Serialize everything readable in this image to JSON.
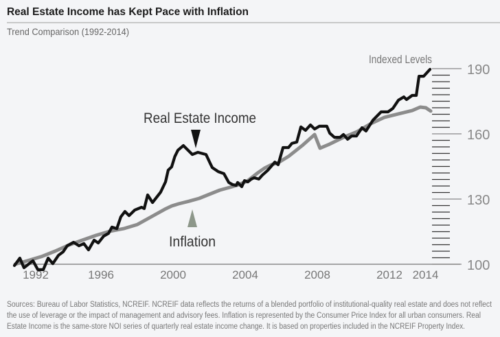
{
  "header": {
    "title": "Real Estate Income has Kept Pace with Inflation",
    "subtitle": "Trend Comparison (1992-2014)"
  },
  "footnote": [
    "Sources: Bureau of Labor Statistics, NCREIF. NCREIF data reflects the returns of a blended portfolio of institutional-quality real estate and does not reflect",
    "the use of leverage or the impact of management and advisory fees. Inflation is represented by the Consumer Price Index for all urban consumers. Real",
    "Estate Income is the same-store NOI series of quarterly real estate income change. It is based on properties included in the NCREIF Property Index."
  ],
  "colors": {
    "background": "#f4f5f7",
    "real_estate": "#111111",
    "inflation": "#8c8c8c",
    "inflation_marker": "#8d978a"
  },
  "chart_data": {
    "type": "line",
    "title": "Real Estate Income has Kept Pace with Inflation",
    "subtitle": "Trend Comparison (1992-2014)",
    "ylabel": "Indexed Levels",
    "xlim": [
      1991.2,
      2015.5
    ],
    "ylim": [
      100,
      190
    ],
    "x_ticks": [
      1992,
      1996,
      2000,
      2004,
      2008,
      2012,
      2014
    ],
    "x_tick_labels": [
      "1992",
      "1996",
      "2000",
      "2004",
      "2008",
      "2012",
      "2014"
    ],
    "y_ticks": [
      100,
      130,
      160,
      190
    ],
    "y_tick_labels": [
      "100",
      "130",
      "160",
      "190"
    ],
    "y_minor_step": 3,
    "y_axis_side": "right",
    "grid": false,
    "legend": "none (inline labels)",
    "annotations": [
      {
        "text": "Real Estate Income",
        "series": 0,
        "marker": "down-triangle"
      },
      {
        "text": "Inflation",
        "series": 1,
        "marker": "up-triangle"
      }
    ],
    "series": [
      {
        "name": "Real Estate Income",
        "points": [
          [
            1991.2,
            99.4
          ],
          [
            1991.5,
            102.8
          ],
          [
            1991.73,
            98.4
          ],
          [
            1992.23,
            101.6
          ],
          [
            1992.5,
            97.5
          ],
          [
            1992.8,
            97.5
          ],
          [
            1993.07,
            102.8
          ],
          [
            1993.33,
            100.3
          ],
          [
            1993.64,
            104.1
          ],
          [
            1993.9,
            105.7
          ],
          [
            1994.13,
            108.5
          ],
          [
            1994.48,
            110.1
          ],
          [
            1994.78,
            108.5
          ],
          [
            1995.05,
            109.5
          ],
          [
            1995.31,
            106.6
          ],
          [
            1995.62,
            111.1
          ],
          [
            1995.85,
            109.8
          ],
          [
            1996.15,
            112.9
          ],
          [
            1996.42,
            114.2
          ],
          [
            1996.61,
            117.1
          ],
          [
            1996.88,
            116.4
          ],
          [
            1997.1,
            121.8
          ],
          [
            1997.33,
            124.3
          ],
          [
            1997.56,
            122.4
          ],
          [
            1997.87,
            124.9
          ],
          [
            1998.25,
            126.2
          ],
          [
            1998.4,
            125.6
          ],
          [
            1998.59,
            131.9
          ],
          [
            1998.86,
            128.4
          ],
          [
            1999.31,
            133.2
          ],
          [
            1999.58,
            137.9
          ],
          [
            1999.73,
            143.3
          ],
          [
            1999.92,
            144.8
          ],
          [
            2000.1,
            149.6
          ],
          [
            2000.27,
            152.5
          ],
          [
            2000.57,
            154.6
          ],
          [
            2001.07,
            150.5
          ],
          [
            2001.37,
            151.5
          ],
          [
            2001.83,
            150.5
          ],
          [
            2002.06,
            146.4
          ],
          [
            2002.17,
            144.5
          ],
          [
            2002.51,
            142.6
          ],
          [
            2002.82,
            141.7
          ],
          [
            2003.09,
            137.6
          ],
          [
            2003.31,
            136.6
          ],
          [
            2003.5,
            136.3
          ],
          [
            2003.58,
            137.6
          ],
          [
            2003.81,
            135.7
          ],
          [
            2003.96,
            138.5
          ],
          [
            2004.15,
            137.9
          ],
          [
            2004.34,
            139.2
          ],
          [
            2004.5,
            139.8
          ],
          [
            2004.76,
            139.2
          ],
          [
            2004.95,
            141.0
          ],
          [
            2005.26,
            143.3
          ],
          [
            2005.64,
            147.0
          ],
          [
            2005.83,
            145.8
          ],
          [
            2006.1,
            153.7
          ],
          [
            2006.4,
            153.7
          ],
          [
            2006.59,
            155.6
          ],
          [
            2006.86,
            156.2
          ],
          [
            2007.09,
            163.2
          ],
          [
            2007.35,
            161.6
          ],
          [
            2007.62,
            164.1
          ],
          [
            2007.85,
            162.2
          ],
          [
            2008.11,
            163.5
          ],
          [
            2008.53,
            163.5
          ],
          [
            2008.69,
            160.3
          ],
          [
            2008.95,
            158.4
          ],
          [
            2009.26,
            158.4
          ],
          [
            2009.45,
            159.7
          ],
          [
            2009.68,
            157.5
          ],
          [
            2009.9,
            159.0
          ],
          [
            2010.17,
            159.0
          ],
          [
            2010.48,
            162.8
          ],
          [
            2010.7,
            161.3
          ],
          [
            2011.09,
            166.3
          ],
          [
            2011.54,
            170.1
          ],
          [
            2011.92,
            170.1
          ],
          [
            2012.19,
            171.7
          ],
          [
            2012.5,
            175.5
          ],
          [
            2012.8,
            177.0
          ],
          [
            2012.95,
            175.8
          ],
          [
            2013.26,
            177.7
          ],
          [
            2013.49,
            177.7
          ],
          [
            2013.64,
            186.5
          ],
          [
            2013.9,
            186.5
          ],
          [
            2014.25,
            189.7
          ]
        ]
      },
      {
        "name": "Inflation",
        "points": [
          [
            1991.24,
            100.0
          ],
          [
            1991.92,
            101.6
          ],
          [
            1992.69,
            103.5
          ],
          [
            1993.45,
            106.0
          ],
          [
            1994.21,
            108.8
          ],
          [
            1994.97,
            111.1
          ],
          [
            1995.73,
            113.3
          ],
          [
            1996.5,
            115.2
          ],
          [
            1997.26,
            116.4
          ],
          [
            1998.02,
            118.3
          ],
          [
            1998.78,
            121.8
          ],
          [
            1999.54,
            125.3
          ],
          [
            1999.92,
            126.8
          ],
          [
            2000.3,
            127.8
          ],
          [
            2000.88,
            129.0
          ],
          [
            2001.45,
            130.3
          ],
          [
            2002.02,
            132.2
          ],
          [
            2002.59,
            134.1
          ],
          [
            2003.16,
            135.4
          ],
          [
            2003.54,
            136.3
          ],
          [
            2004.11,
            138.2
          ],
          [
            2004.69,
            142.0
          ],
          [
            2005.07,
            144.2
          ],
          [
            2005.45,
            145.8
          ],
          [
            2005.83,
            146.7
          ],
          [
            2006.4,
            149.6
          ],
          [
            2007.16,
            154.6
          ],
          [
            2007.85,
            159.7
          ],
          [
            2008.15,
            153.4
          ],
          [
            2008.69,
            155.3
          ],
          [
            2009.45,
            158.4
          ],
          [
            2010.21,
            161.0
          ],
          [
            2010.97,
            164.7
          ],
          [
            2011.73,
            167.6
          ],
          [
            2012.5,
            169.2
          ],
          [
            2013.26,
            170.7
          ],
          [
            2013.71,
            172.3
          ],
          [
            2014.02,
            172.0
          ],
          [
            2014.29,
            170.5
          ]
        ]
      }
    ]
  }
}
